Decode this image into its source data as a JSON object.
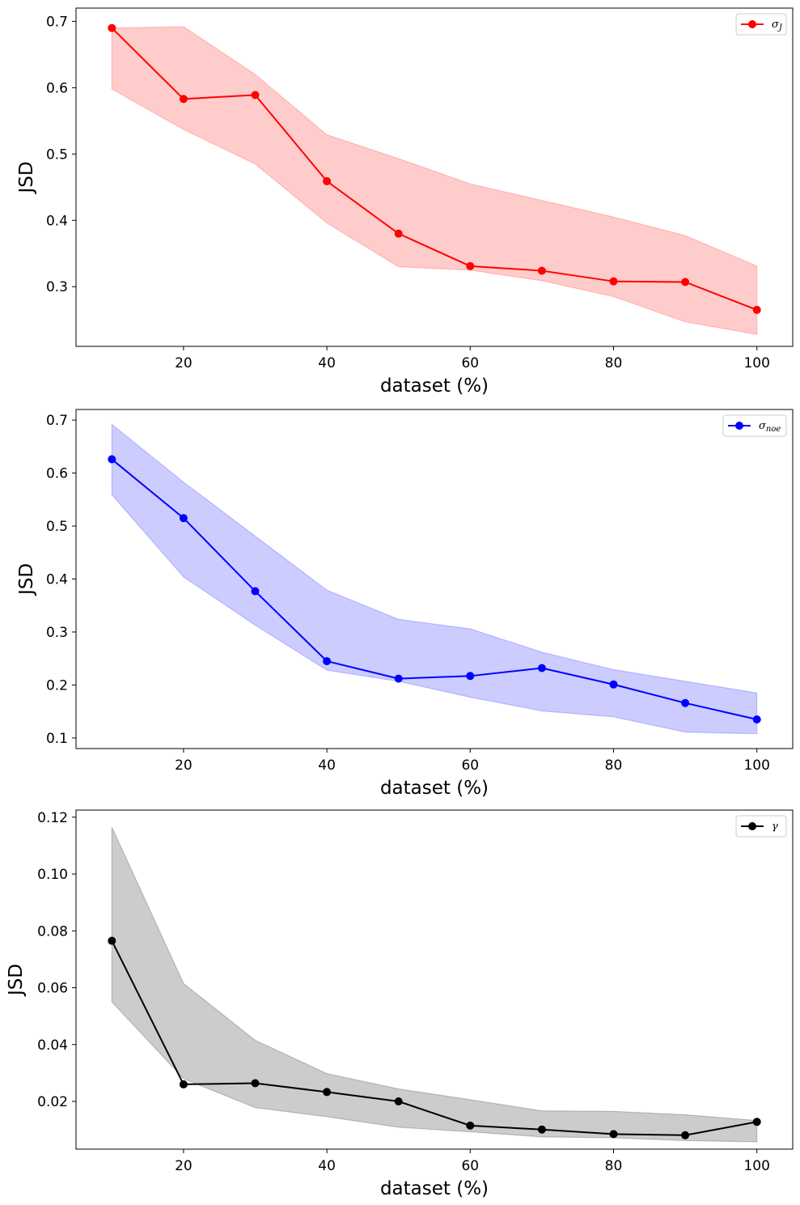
{
  "chart_data": [
    {
      "type": "line",
      "xlabel": "dataset (%)",
      "ylabel": "JSD",
      "xlim": [
        5,
        105
      ],
      "ylim": [
        0.21,
        0.72
      ],
      "xticks": [
        20,
        40,
        60,
        80,
        100
      ],
      "xtick_labels": [
        "20",
        "40",
        "60",
        "80",
        "100"
      ],
      "yticks": [
        0.3,
        0.4,
        0.5,
        0.6,
        0.7
      ],
      "ytick_labels": [
        "0.3",
        "0.4",
        "0.5",
        "0.6",
        "0.7"
      ],
      "grid": false,
      "legend_position": "top-right",
      "series": [
        {
          "name": "σ",
          "name_sub": "J",
          "color": "#ff0000",
          "band_color": "#ff0000",
          "x": [
            10,
            20,
            30,
            40,
            50,
            60,
            70,
            80,
            90,
            100
          ],
          "y": [
            0.69,
            0.583,
            0.589,
            0.459,
            0.38,
            0.331,
            0.324,
            0.308,
            0.307,
            0.265
          ],
          "lower": [
            0.598,
            0.537,
            0.485,
            0.396,
            0.33,
            0.325,
            0.309,
            0.285,
            0.247,
            0.228
          ],
          "upper": [
            0.69,
            0.692,
            0.62,
            0.529,
            0.493,
            0.455,
            0.43,
            0.405,
            0.377,
            0.331
          ]
        }
      ]
    },
    {
      "type": "line",
      "xlabel": "dataset (%)",
      "ylabel": "JSD",
      "xlim": [
        5,
        105
      ],
      "ylim": [
        0.08,
        0.72
      ],
      "xticks": [
        20,
        40,
        60,
        80,
        100
      ],
      "xtick_labels": [
        "20",
        "40",
        "60",
        "80",
        "100"
      ],
      "yticks": [
        0.1,
        0.2,
        0.3,
        0.4,
        0.5,
        0.6,
        0.7
      ],
      "ytick_labels": [
        "0.1",
        "0.2",
        "0.3",
        "0.4",
        "0.5",
        "0.6",
        "0.7"
      ],
      "grid": false,
      "legend_position": "top-right",
      "series": [
        {
          "name": "σ",
          "name_sub": "noe",
          "color": "#0000ff",
          "band_color": "#0000ff",
          "x": [
            10,
            20,
            30,
            40,
            50,
            60,
            70,
            80,
            90,
            100
          ],
          "y": [
            0.626,
            0.515,
            0.377,
            0.245,
            0.212,
            0.217,
            0.232,
            0.201,
            0.166,
            0.135
          ],
          "lower": [
            0.559,
            0.404,
            0.313,
            0.228,
            0.207,
            0.177,
            0.151,
            0.14,
            0.111,
            0.108
          ],
          "upper": [
            0.692,
            0.583,
            0.481,
            0.379,
            0.324,
            0.306,
            0.262,
            0.229,
            0.207,
            0.185
          ]
        }
      ]
    },
    {
      "type": "line",
      "xlabel": "dataset (%)",
      "ylabel": "JSD",
      "xlim": [
        5,
        105
      ],
      "ylim": [
        0.0032,
        0.1225
      ],
      "xticks": [
        20,
        40,
        60,
        80,
        100
      ],
      "xtick_labels": [
        "20",
        "40",
        "60",
        "80",
        "100"
      ],
      "yticks": [
        0.02,
        0.04,
        0.06,
        0.08,
        0.1,
        0.12
      ],
      "ytick_labels": [
        "0.02",
        "0.04",
        "0.06",
        "0.08",
        "0.10",
        "0.12"
      ],
      "grid": false,
      "legend_position": "top-right",
      "series": [
        {
          "name": "γ",
          "name_sub": "",
          "color": "#000000",
          "band_color": "#000000",
          "x": [
            10,
            20,
            30,
            40,
            50,
            60,
            70,
            80,
            90,
            100
          ],
          "y": [
            0.0765,
            0.026,
            0.0264,
            0.0233,
            0.02,
            0.0115,
            0.0101,
            0.0085,
            0.0081,
            0.0128
          ],
          "lower": [
            0.055,
            0.028,
            0.0178,
            0.0146,
            0.0109,
            0.0093,
            0.0075,
            0.0072,
            0.0062,
            0.0058
          ],
          "upper": [
            0.1165,
            0.0615,
            0.0415,
            0.0298,
            0.0244,
            0.0206,
            0.0167,
            0.0165,
            0.0153,
            0.0133
          ]
        }
      ]
    }
  ]
}
